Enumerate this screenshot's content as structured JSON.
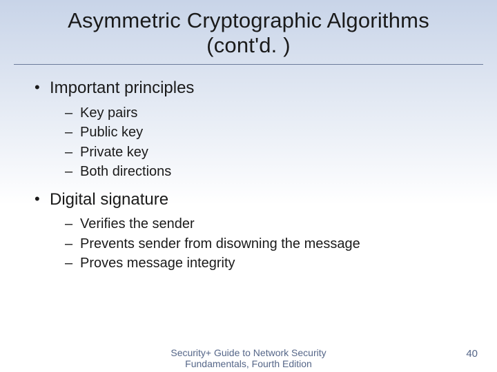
{
  "typography": {
    "title_fontsize": 31,
    "level1_fontsize": 24,
    "level2_fontsize": 20,
    "footer_fontsize": 14,
    "pagenumber_fontsize": 15,
    "font_family": "Arial"
  },
  "colors": {
    "background_gradient_top": "#c8d4e8",
    "background_gradient_bottom": "#ffffff",
    "text_color": "#1a1a1a",
    "rule_color": "#6a7a9a",
    "footer_color": "#556688"
  },
  "title": {
    "line1": "Asymmetric Cryptographic Algorithms",
    "line2": "(cont'd. )"
  },
  "bullets": [
    {
      "text": "Important principles",
      "children": [
        {
          "text": "Key pairs"
        },
        {
          "text": "Public key"
        },
        {
          "text": "Private key"
        },
        {
          "text": "Both directions"
        }
      ]
    },
    {
      "text": "Digital signature",
      "children": [
        {
          "text": "Verifies the sender"
        },
        {
          "text": "Prevents sender from disowning the message"
        },
        {
          "text": "Proves message integrity"
        }
      ]
    }
  ],
  "footer": {
    "text": "Security+ Guide to Network Security Fundamentals, Fourth Edition"
  },
  "page_number": "40"
}
